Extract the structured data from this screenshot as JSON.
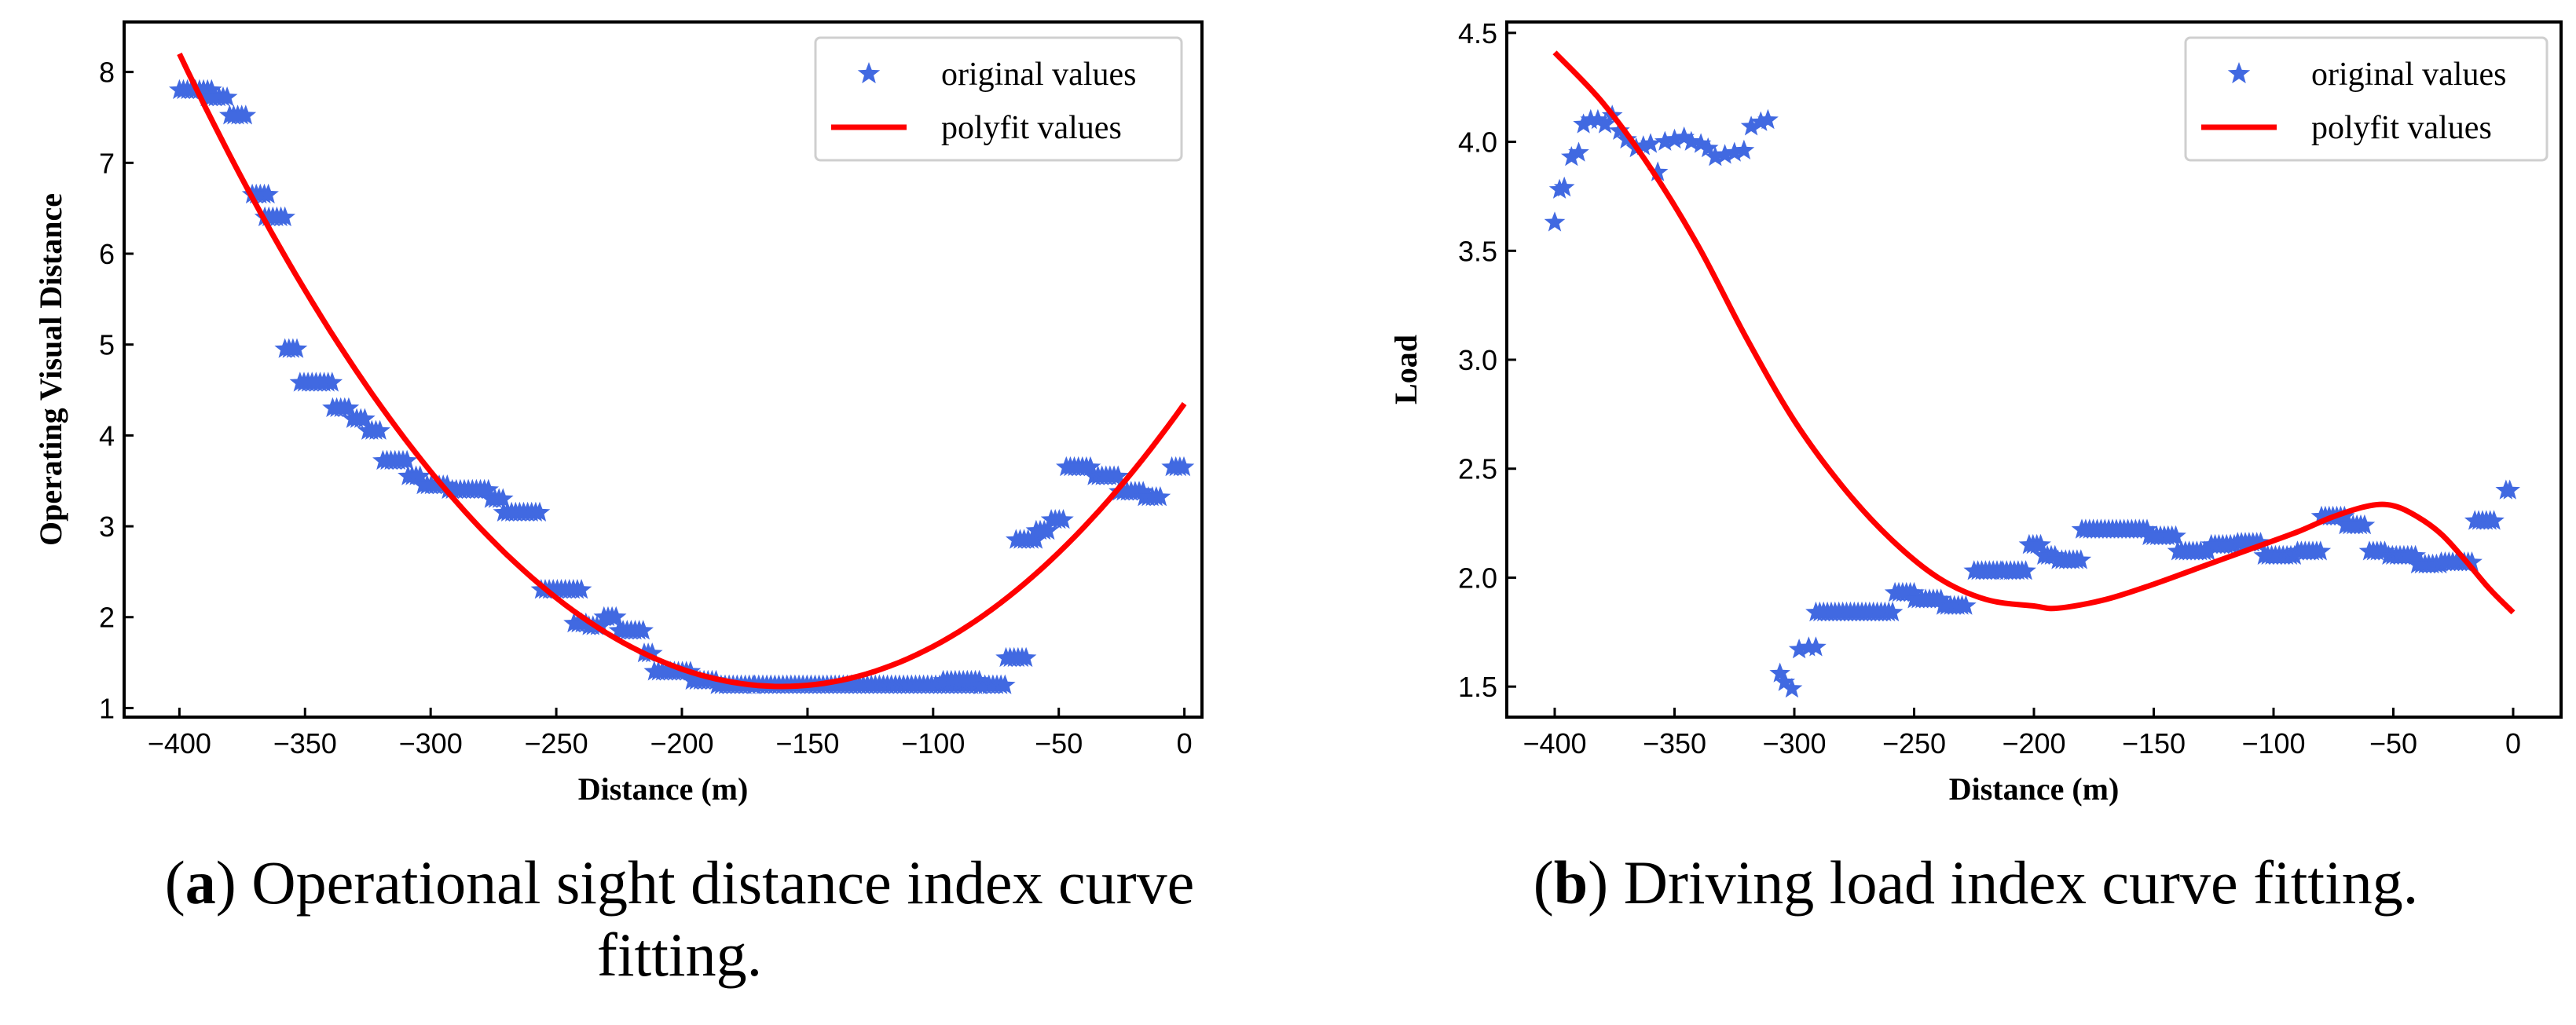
{
  "chart_data": [
    {
      "id": "a",
      "type": "scatter",
      "title": "",
      "xlabel": "Distance (m)",
      "ylabel": "Operating Visual Distance",
      "xlim": [
        -422,
        7
      ],
      "ylim": [
        0.9,
        8.55
      ],
      "xticks": [
        -400,
        -350,
        -300,
        -250,
        -200,
        -150,
        -100,
        -50,
        0
      ],
      "xtick_labels": [
        "−400",
        "−350",
        "−300",
        "−250",
        "−200",
        "−150",
        "−100",
        "−50",
        "0"
      ],
      "yticks": [
        1,
        2,
        3,
        4,
        5,
        6,
        7,
        8
      ],
      "ytick_labels": [
        "1",
        "2",
        "3",
        "4",
        "5",
        "6",
        "7",
        "8"
      ],
      "legend": {
        "position": "top-right",
        "entries": [
          "original values",
          "polyfit values"
        ]
      },
      "series": [
        {
          "name": "original values",
          "marker": "star",
          "color": "#4169e1",
          "segments": [
            [
              -400,
              -387,
              7.8
            ],
            [
              -389,
              -380,
              7.72
            ],
            [
              -380,
              -373,
              7.52
            ],
            [
              -371,
              -364,
              6.65
            ],
            [
              -366,
              -357,
              6.4
            ],
            [
              -358,
              -352,
              4.95
            ],
            [
              -352,
              -339,
              4.58
            ],
            [
              -339,
              -331,
              4.3
            ],
            [
              -331,
              -325,
              4.18
            ],
            [
              -325,
              -319,
              4.05
            ],
            [
              -319,
              -309,
              3.72
            ],
            [
              -309,
              -303,
              3.55
            ],
            [
              -303,
              -293,
              3.45
            ],
            [
              -293,
              -276,
              3.4
            ],
            [
              -276,
              -271,
              3.3
            ],
            [
              -271,
              -256,
              3.15
            ],
            [
              -256,
              -240,
              2.3
            ],
            [
              -243,
              -237,
              1.93
            ],
            [
              -237,
              -231,
              1.9
            ],
            [
              -231,
              -225,
              2.0
            ],
            [
              -225,
              -215,
              1.85
            ],
            [
              -215,
              -211,
              1.6
            ],
            [
              -211,
              -196,
              1.4
            ],
            [
              -196,
              -186,
              1.3
            ],
            [
              -186,
              -171,
              1.25
            ],
            [
              -171,
              -81,
              1.25
            ],
            [
              -96,
              -81,
              1.3
            ],
            [
              -81,
              -71,
              1.25
            ],
            [
              -71,
              -63,
              1.55
            ],
            [
              -67,
              -59,
              2.85
            ],
            [
              -59,
              -53,
              2.95
            ],
            [
              -53,
              -47,
              3.07
            ],
            [
              -47,
              -36,
              3.65
            ],
            [
              -36,
              -26,
              3.55
            ],
            [
              -26,
              -16,
              3.38
            ],
            [
              -16,
              -9,
              3.32
            ],
            [
              -5,
              0,
              3.65
            ]
          ]
        },
        {
          "name": "polyfit values",
          "type": "line",
          "color": "#ff0000",
          "poly_points": [
            [
              -400,
              8.2
            ],
            [
              -150,
              1.25
            ],
            [
              0,
              4.35
            ]
          ]
        }
      ]
    },
    {
      "id": "b",
      "type": "scatter",
      "title": "",
      "xlabel": "Distance (m)",
      "ylabel": "Load",
      "xlim": [
        -420,
        20
      ],
      "ylim": [
        1.36,
        4.55
      ],
      "xticks": [
        -400,
        -350,
        -300,
        -250,
        -200,
        -150,
        -100,
        -50,
        0
      ],
      "xtick_labels": [
        "−400",
        "−350",
        "−300",
        "−250",
        "−200",
        "−150",
        "−100",
        "−50",
        "0"
      ],
      "yticks": [
        1.5,
        2.0,
        2.5,
        3.0,
        3.5,
        4.0,
        4.5
      ],
      "ytick_labels": [
        "1.5",
        "2.0",
        "2.5",
        "3.0",
        "3.5",
        "4.0",
        "4.5"
      ],
      "legend": {
        "position": "top-right",
        "entries": [
          "original values",
          "polyfit values"
        ]
      },
      "series": [
        {
          "name": "original values",
          "marker": "star",
          "color": "#4169e1",
          "points": [
            [
              -400,
              3.63
            ],
            [
              -398,
              3.78
            ],
            [
              -396,
              3.79
            ],
            [
              -393,
              3.93
            ],
            [
              -390,
              3.95
            ],
            [
              -388,
              4.08
            ],
            [
              -385,
              4.1
            ],
            [
              -382,
              4.1
            ],
            [
              -379,
              4.08
            ],
            [
              -376,
              4.12
            ],
            [
              -373,
              4.05
            ],
            [
              -370,
              4.01
            ],
            [
              -366,
              3.97
            ],
            [
              -363,
              3.98
            ],
            [
              -360,
              3.99
            ],
            [
              -357,
              3.86
            ],
            [
              -354,
              4.0
            ],
            [
              -350,
              4.01
            ],
            [
              -346,
              4.02
            ],
            [
              -343,
              4.0
            ],
            [
              -339,
              3.99
            ],
            [
              -336,
              3.97
            ],
            [
              -333,
              3.93
            ],
            [
              -329,
              3.94
            ],
            [
              -325,
              3.95
            ],
            [
              -321,
              3.96
            ],
            [
              -318,
              4.07
            ],
            [
              -314,
              4.09
            ],
            [
              -311,
              4.1
            ],
            [
              -306,
              1.56
            ],
            [
              -304,
              1.52
            ],
            [
              -301,
              1.49
            ],
            [
              -298,
              1.67
            ],
            [
              -294,
              1.68
            ],
            [
              -291,
              1.68
            ]
          ],
          "segments": [
            [
              -291,
              -283,
              1.84
            ],
            [
              -283,
              -258,
              1.84
            ],
            [
              -258,
              -250,
              1.93
            ],
            [
              -250,
              -238,
              1.9
            ],
            [
              -238,
              -228,
              1.87
            ],
            [
              -225,
              -213,
              2.03
            ],
            [
              -213,
              -202,
              2.03
            ],
            [
              -202,
              -196,
              2.15
            ],
            [
              -196,
              -190,
              2.1
            ],
            [
              -190,
              -180,
              2.08
            ],
            [
              -180,
              -152,
              2.22
            ],
            [
              -152,
              -140,
              2.19
            ],
            [
              -140,
              -126,
              2.12
            ],
            [
              -126,
              -115,
              2.15
            ],
            [
              -115,
              -104,
              2.16
            ],
            [
              -104,
              -90,
              2.1
            ],
            [
              -90,
              -80,
              2.12
            ],
            [
              -80,
              -70,
              2.28
            ],
            [
              -70,
              -62,
              2.24
            ],
            [
              -60,
              -52,
              2.12
            ],
            [
              -52,
              -40,
              2.1
            ],
            [
              -40,
              -30,
              2.06
            ],
            [
              -30,
              -16,
              2.07
            ],
            [
              -16,
              -8,
              2.26
            ],
            [
              -3,
              0,
              2.4
            ]
          ]
        },
        {
          "name": "polyfit values",
          "type": "line",
          "color": "#ff0000",
          "curve": [
            [
              -400,
              4.41
            ],
            [
              -380,
              4.18
            ],
            [
              -360,
              3.88
            ],
            [
              -340,
              3.52
            ],
            [
              -320,
              3.1
            ],
            [
              -300,
              2.72
            ],
            [
              -280,
              2.42
            ],
            [
              -260,
              2.18
            ],
            [
              -240,
              2.0
            ],
            [
              -220,
              1.9
            ],
            [
              -200,
              1.87
            ],
            [
              -190,
              1.86
            ],
            [
              -170,
              1.9
            ],
            [
              -150,
              1.97
            ],
            [
              -130,
              2.05
            ],
            [
              -110,
              2.13
            ],
            [
              -90,
              2.21
            ],
            [
              -75,
              2.28
            ],
            [
              -60,
              2.33
            ],
            [
              -50,
              2.33
            ],
            [
              -40,
              2.28
            ],
            [
              -30,
              2.2
            ],
            [
              -20,
              2.08
            ],
            [
              -10,
              1.95
            ],
            [
              0,
              1.84
            ]
          ]
        }
      ]
    }
  ],
  "captions": [
    {
      "letter": "a",
      "text_line1": " Operational sight distance index curve",
      "text_line2": "fitting."
    },
    {
      "letter": "b",
      "text": " Driving load index curve fitting."
    }
  ]
}
